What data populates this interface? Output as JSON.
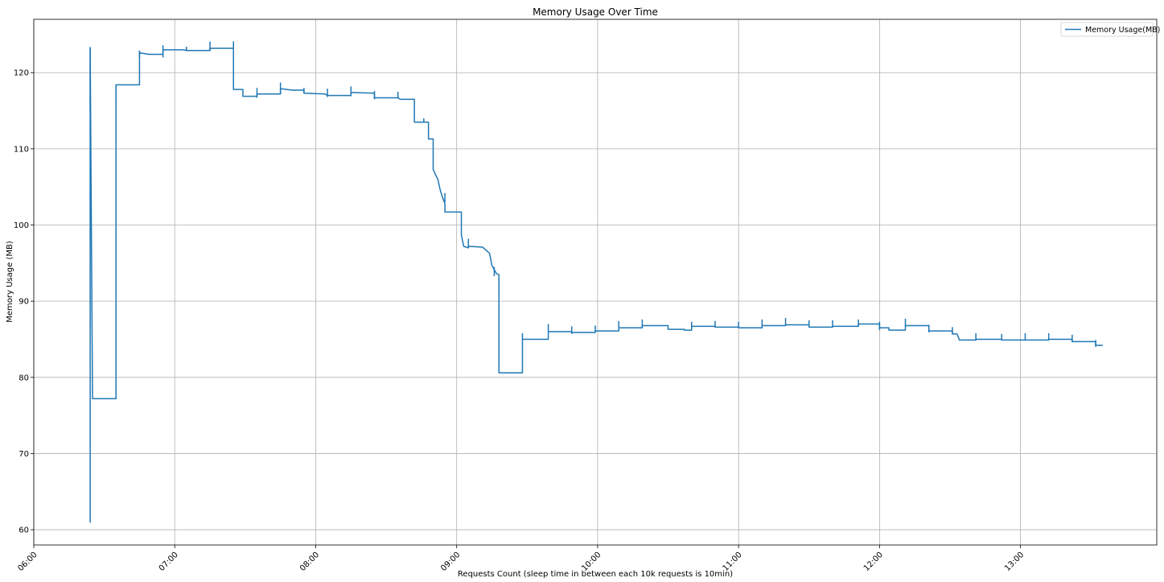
{
  "chart_data": {
    "type": "line",
    "title": "Memory Usage Over Time",
    "xlabel": "Requests Count (sleep time in between each 10k requests is 10min)",
    "ylabel": "Memory Usage (MB)",
    "xlim": [
      "06:00",
      "13:58"
    ],
    "ylim": [
      58,
      127
    ],
    "x_ticks": [
      "06:00",
      "07:00",
      "08:00",
      "09:00",
      "10:00",
      "11:00",
      "12:00",
      "13:00"
    ],
    "y_ticks": [
      60,
      70,
      80,
      90,
      100,
      110,
      120
    ],
    "grid": true,
    "legend_position": "top-right",
    "line_color": "#1f77b4",
    "series": [
      {
        "name": "Memory Usage(MB)",
        "points": [
          [
            "06:24",
            62.0
          ],
          [
            "06:24",
            61.0
          ],
          [
            "06:24",
            123.3
          ],
          [
            "06:25",
            77.2
          ],
          [
            "06:35",
            77.2
          ],
          [
            "06:35",
            118.4
          ],
          [
            "06:45",
            118.4
          ],
          [
            "06:45",
            122.6
          ],
          [
            "06:49",
            122.4
          ],
          [
            "06:55",
            122.4
          ],
          [
            "06:55",
            123.0
          ],
          [
            "07:04",
            123.0
          ],
          [
            "07:05",
            122.9
          ],
          [
            "07:15",
            122.9
          ],
          [
            "07:15",
            123.2
          ],
          [
            "07:25",
            123.2
          ],
          [
            "07:25",
            117.8
          ],
          [
            "07:29",
            117.8
          ],
          [
            "07:29",
            116.9
          ],
          [
            "07:35",
            116.9
          ],
          [
            "07:35",
            117.2
          ],
          [
            "07:45",
            117.2
          ],
          [
            "07:45",
            117.9
          ],
          [
            "07:50",
            117.7
          ],
          [
            "07:55",
            117.7
          ],
          [
            "07:55",
            117.3
          ],
          [
            "08:04",
            117.2
          ],
          [
            "08:05",
            117.0
          ],
          [
            "08:15",
            117.0
          ],
          [
            "08:15",
            117.4
          ],
          [
            "08:25",
            117.3
          ],
          [
            "08:25",
            116.7
          ],
          [
            "08:35",
            116.7
          ],
          [
            "08:36",
            116.5
          ],
          [
            "08:42",
            116.5
          ],
          [
            "08:42",
            113.5
          ],
          [
            "08:48",
            113.5
          ],
          [
            "08:48",
            111.3
          ],
          [
            "08:50",
            111.3
          ],
          [
            "08:50",
            107.3
          ],
          [
            "08:51",
            106.6
          ],
          [
            "08:52",
            106.0
          ],
          [
            "08:53",
            104.6
          ],
          [
            "08:54",
            103.6
          ],
          [
            "08:55",
            102.8
          ],
          [
            "08:55",
            101.7
          ],
          [
            "09:02",
            101.7
          ],
          [
            "09:02",
            98.7
          ],
          [
            "09:03",
            97.2
          ],
          [
            "09:05",
            97.0
          ],
          [
            "09:05",
            97.2
          ],
          [
            "09:11",
            97.1
          ],
          [
            "09:14",
            96.3
          ],
          [
            "09:15",
            94.7
          ],
          [
            "09:17",
            93.6
          ],
          [
            "09:18",
            93.5
          ],
          [
            "09:18",
            80.6
          ],
          [
            "09:28",
            80.6
          ],
          [
            "09:28",
            85.0
          ],
          [
            "09:39",
            85.0
          ],
          [
            "09:39",
            86.0
          ],
          [
            "09:49",
            86.0
          ],
          [
            "09:49",
            85.9
          ],
          [
            "09:59",
            85.9
          ],
          [
            "09:59",
            86.1
          ],
          [
            "10:09",
            86.1
          ],
          [
            "10:09",
            86.5
          ],
          [
            "10:19",
            86.5
          ],
          [
            "10:19",
            86.8
          ],
          [
            "10:30",
            86.8
          ],
          [
            "10:30",
            86.3
          ],
          [
            "10:37",
            86.3
          ],
          [
            "10:37",
            86.2
          ],
          [
            "10:40",
            86.2
          ],
          [
            "10:40",
            86.7
          ],
          [
            "10:50",
            86.7
          ],
          [
            "10:50",
            86.6
          ],
          [
            "11:00",
            86.6
          ],
          [
            "11:00",
            86.5
          ],
          [
            "11:10",
            86.5
          ],
          [
            "11:10",
            86.8
          ],
          [
            "11:20",
            86.8
          ],
          [
            "11:20",
            86.9
          ],
          [
            "11:30",
            86.9
          ],
          [
            "11:30",
            86.6
          ],
          [
            "11:40",
            86.6
          ],
          [
            "11:40",
            86.7
          ],
          [
            "11:51",
            86.7
          ],
          [
            "11:51",
            87.0
          ],
          [
            "12:00",
            87.0
          ],
          [
            "12:00",
            86.5
          ],
          [
            "12:04",
            86.5
          ],
          [
            "12:04",
            86.2
          ],
          [
            "12:11",
            86.2
          ],
          [
            "12:11",
            86.8
          ],
          [
            "12:21",
            86.8
          ],
          [
            "12:21",
            86.1
          ],
          [
            "12:31",
            86.1
          ],
          [
            "12:31",
            85.7
          ],
          [
            "12:33",
            85.7
          ],
          [
            "12:34",
            84.9
          ],
          [
            "12:41",
            84.9
          ],
          [
            "12:41",
            85.0
          ],
          [
            "12:52",
            85.0
          ],
          [
            "12:52",
            84.9
          ],
          [
            "13:12",
            84.9
          ],
          [
            "13:12",
            85.0
          ],
          [
            "13:22",
            85.0
          ],
          [
            "13:22",
            84.7
          ],
          [
            "13:32",
            84.7
          ],
          [
            "13:32",
            84.2
          ],
          [
            "13:35",
            84.2
          ]
        ],
        "spikes": [
          [
            "06:24",
            115.0,
            123.3
          ],
          [
            "06:35",
            115.7,
            118.4
          ],
          [
            "06:45",
            122.0,
            122.9
          ],
          [
            "06:55",
            122.0,
            123.6
          ],
          [
            "07:05",
            122.9,
            123.4
          ],
          [
            "07:15",
            122.9,
            124.1
          ],
          [
            "07:25",
            123.0,
            124.1
          ],
          [
            "07:35",
            116.7,
            118.0
          ],
          [
            "07:45",
            117.2,
            118.7
          ],
          [
            "07:55",
            117.3,
            118.0
          ],
          [
            "08:05",
            116.8,
            117.9
          ],
          [
            "08:15",
            116.9,
            118.2
          ],
          [
            "08:25",
            116.5,
            117.6
          ],
          [
            "08:35",
            116.6,
            117.5
          ],
          [
            "08:46",
            113.5,
            114.0
          ],
          [
            "08:55",
            103.0,
            104.2
          ],
          [
            "09:05",
            97.0,
            98.2
          ],
          [
            "09:16",
            93.3,
            94.5
          ],
          [
            "09:28",
            85.0,
            85.8
          ],
          [
            "09:39",
            86.0,
            87.0
          ],
          [
            "09:49",
            85.7,
            86.7
          ],
          [
            "09:59",
            86.0,
            86.8
          ],
          [
            "10:09",
            86.5,
            87.4
          ],
          [
            "10:19",
            86.6,
            87.6
          ],
          [
            "10:40",
            86.5,
            87.3
          ],
          [
            "10:50",
            86.6,
            87.4
          ],
          [
            "11:00",
            86.5,
            87.3
          ],
          [
            "11:10",
            86.8,
            87.6
          ],
          [
            "11:20",
            86.9,
            87.8
          ],
          [
            "11:30",
            86.6,
            87.5
          ],
          [
            "11:40",
            86.7,
            87.5
          ],
          [
            "11:51",
            86.7,
            87.6
          ],
          [
            "12:00",
            86.2,
            87.3
          ],
          [
            "12:11",
            86.7,
            87.7
          ],
          [
            "12:21",
            85.9,
            86.9
          ],
          [
            "12:31",
            85.7,
            86.6
          ],
          [
            "12:41",
            84.9,
            85.8
          ],
          [
            "12:52",
            84.9,
            85.7
          ],
          [
            "13:02",
            84.9,
            85.8
          ],
          [
            "13:12",
            84.9,
            85.8
          ],
          [
            "13:22",
            84.7,
            85.6
          ],
          [
            "13:32",
            84.0,
            84.9
          ]
        ]
      }
    ]
  }
}
